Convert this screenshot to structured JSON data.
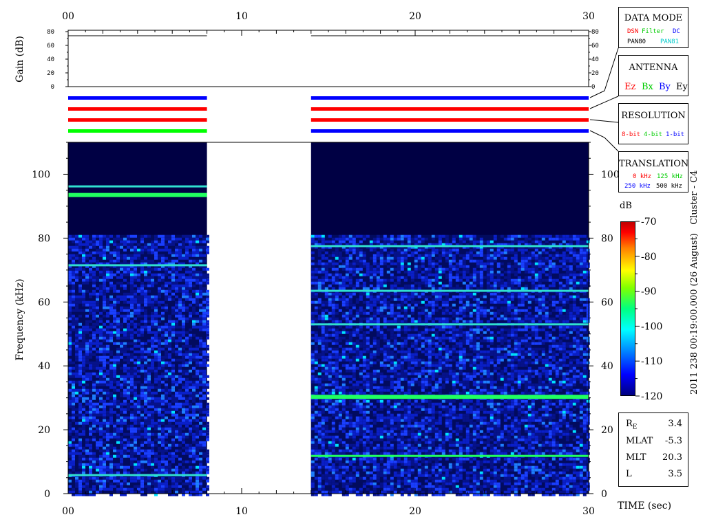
{
  "chart_data": {
    "type": "heatmap",
    "title": "",
    "xlabel": "TIME (sec)",
    "xlim": [
      0,
      30
    ],
    "xticks": [
      "00",
      "10",
      "20",
      "30"
    ],
    "gain_panel": {
      "ylabel": "Gain (dB)",
      "ylim": [
        0,
        80
      ],
      "yticks": [
        "80",
        "60",
        "40",
        "20",
        "0"
      ],
      "segments": [
        {
          "t_start": 0,
          "t_end": 8,
          "gain": 74
        },
        {
          "t_start": 14,
          "t_end": 30,
          "gain": 74
        }
      ]
    },
    "mode_bars": {
      "rows": [
        {
          "segments": [
            {
              "t_start": 0,
              "t_end": 8,
              "color": "#0000ff"
            },
            {
              "t_start": 14,
              "t_end": 30,
              "color": "#0000ff"
            }
          ]
        },
        {
          "segments": [
            {
              "t_start": 0,
              "t_end": 8,
              "color": "#ff0000"
            },
            {
              "t_start": 14,
              "t_end": 30,
              "color": "#ff0000"
            }
          ]
        },
        {
          "segments": [
            {
              "t_start": 0,
              "t_end": 8,
              "color": "#ff0000"
            },
            {
              "t_start": 14,
              "t_end": 30,
              "color": "#ff0000"
            }
          ]
        },
        {
          "segments": [
            {
              "t_start": 0,
              "t_end": 8,
              "color": "#00ff00"
            },
            {
              "t_start": 14,
              "t_end": 30,
              "color": "#0000ff"
            }
          ]
        }
      ]
    },
    "spectrogram": {
      "ylabel": "Frequency (kHz)",
      "ylim": [
        0,
        110
      ],
      "yticks": [
        "0",
        "20",
        "40",
        "60",
        "80",
        "100"
      ],
      "background_color": "#000044",
      "noise_cutoff_khz": 81,
      "segments": [
        {
          "t_start": 0,
          "t_end": 8,
          "lines_khz": [
            5.8,
            71.5,
            93.5,
            96.2
          ]
        },
        {
          "t_start": 14,
          "t_end": 30,
          "lines_khz": [
            11.8,
            30.3,
            53.0,
            63.5,
            77.5
          ]
        }
      ],
      "gap": {
        "t_start": 8,
        "t_end": 14
      }
    },
    "colorbar": {
      "label": "dB",
      "range": [
        -120,
        -70
      ],
      "ticks": [
        "-70",
        "-80",
        "-90",
        "-100",
        "-110",
        "-120"
      ]
    }
  },
  "side_label": "2011 238 00:19:00.000 (26 August)   Cluster - C4",
  "legends": {
    "data_mode": {
      "title": "DATA MODE",
      "line1": [
        {
          "text": "DSN",
          "color": "#ff0000"
        },
        {
          "text": "Filter",
          "color": "#00cc00"
        },
        {
          "text": "DC",
          "color": "#0000ff"
        }
      ],
      "line2": [
        {
          "text": "PAN80",
          "color": "#000000"
        },
        {
          "text": "PAN81",
          "color": "#00cccc"
        }
      ]
    },
    "antenna": {
      "title": "ANTENNA",
      "items": [
        {
          "text": "Ez",
          "color": "#ff0000"
        },
        {
          "text": "Bx",
          "color": "#00cc00"
        },
        {
          "text": "By",
          "color": "#0000ff"
        },
        {
          "text": "Ey",
          "color": "#000000"
        }
      ]
    },
    "resolution": {
      "title": "RESOLUTION",
      "items": [
        {
          "text": "8-bit",
          "color": "#ff0000"
        },
        {
          "text": "4-bit",
          "color": "#00cc00"
        },
        {
          "text": "1-bit",
          "color": "#0000ff"
        }
      ]
    },
    "translation": {
      "title": "TRANSLATION",
      "line1": [
        {
          "text": "0 kHz",
          "color": "#ff0000"
        },
        {
          "text": "125 kHz",
          "color": "#00cc00"
        }
      ],
      "line2": [
        {
          "text": "250 kHz",
          "color": "#0000ff"
        },
        {
          "text": "500 kHz",
          "color": "#000000"
        }
      ]
    }
  },
  "orbit": {
    "re_label": "R",
    "re_sub": "E",
    "re_value": "3.4",
    "rows": [
      {
        "label": "MLAT",
        "value": "-5.3"
      },
      {
        "label": "MLT",
        "value": "20.3"
      },
      {
        "label": "L",
        "value": "3.5"
      }
    ]
  }
}
